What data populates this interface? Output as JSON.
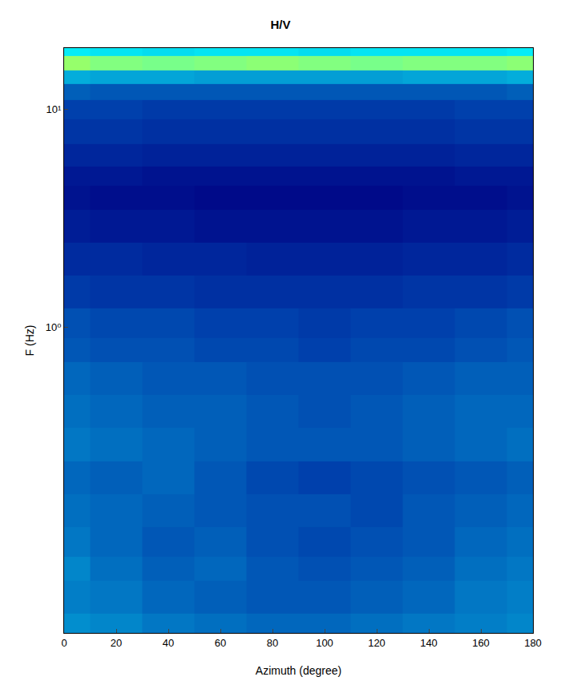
{
  "chart_data": {
    "type": "heatmap",
    "title": "H/V",
    "x_label": "Azimuth (degree)",
    "y_label": "F (Hz)",
    "log": "y",
    "grid": false,
    "color": "Jet",
    "xlim": [
      0,
      180
    ],
    "xticks": [
      0,
      20,
      40,
      60,
      80,
      100,
      120,
      140,
      160,
      180
    ],
    "ylim": [
      0.04,
      19
    ],
    "yticks": [
      {
        "value": 1,
        "label": "10⁰"
      },
      {
        "value": 10,
        "label": "10¹"
      }
    ],
    "zlim": [
      0,
      10
    ],
    "x": [
      0,
      20,
      40,
      60,
      80,
      100,
      120,
      140,
      160,
      180
    ],
    "y": [
      0.04,
      0.06,
      0.08,
      0.1,
      0.15,
      0.2,
      0.3,
      0.4,
      0.6,
      0.8,
      1,
      1.5,
      2,
      3,
      4,
      5,
      6,
      8,
      10,
      12,
      14,
      16,
      19
    ],
    "z": [
      [
        2.3,
        2.2,
        2.0,
        1.9,
        1.8,
        1.8,
        1.9,
        2.0,
        2.1,
        2.2
      ],
      [
        2.1,
        2.0,
        1.8,
        1.7,
        1.6,
        1.6,
        1.7,
        1.8,
        2.0,
        2.1
      ],
      [
        2.2,
        1.9,
        1.7,
        1.8,
        1.6,
        1.5,
        1.6,
        1.7,
        1.9,
        2.0
      ],
      [
        2.0,
        1.8,
        1.6,
        1.7,
        1.5,
        1.4,
        1.5,
        1.6,
        1.8,
        1.9
      ],
      [
        1.9,
        1.8,
        1.7,
        1.6,
        1.5,
        1.5,
        1.4,
        1.6,
        1.7,
        1.8
      ],
      [
        1.8,
        1.7,
        1.8,
        1.6,
        1.4,
        1.3,
        1.4,
        1.5,
        1.6,
        1.7
      ],
      [
        2.0,
        1.9,
        1.8,
        1.7,
        1.6,
        1.6,
        1.6,
        1.7,
        1.8,
        1.9
      ],
      [
        1.9,
        1.8,
        1.7,
        1.7,
        1.6,
        1.5,
        1.6,
        1.7,
        1.8,
        1.8
      ],
      [
        1.8,
        1.7,
        1.6,
        1.6,
        1.5,
        1.5,
        1.5,
        1.6,
        1.7,
        1.7
      ],
      [
        1.6,
        1.5,
        1.5,
        1.4,
        1.4,
        1.3,
        1.4,
        1.4,
        1.5,
        1.6
      ],
      [
        1.5,
        1.4,
        1.4,
        1.3,
        1.3,
        1.2,
        1.3,
        1.3,
        1.4,
        1.5
      ],
      [
        1.2,
        1.1,
        1.1,
        1.0,
        1.0,
        1.0,
        1.0,
        1.1,
        1.1,
        1.2
      ],
      [
        0.9,
        0.9,
        0.8,
        0.8,
        0.7,
        0.7,
        0.7,
        0.8,
        0.8,
        0.9
      ],
      [
        0.6,
        0.5,
        0.5,
        0.4,
        0.4,
        0.4,
        0.4,
        0.5,
        0.5,
        0.6
      ],
      [
        0.4,
        0.3,
        0.3,
        0.2,
        0.2,
        0.2,
        0.2,
        0.3,
        0.3,
        0.4
      ],
      [
        0.5,
        0.5,
        0.4,
        0.4,
        0.4,
        0.4,
        0.4,
        0.4,
        0.5,
        0.5
      ],
      [
        0.8,
        0.8,
        0.7,
        0.7,
        0.7,
        0.7,
        0.7,
        0.7,
        0.8,
        0.8
      ],
      [
        1.1,
        1.1,
        1.0,
        1.0,
        1.0,
        1.0,
        1.0,
        1.0,
        1.1,
        1.1
      ],
      [
        1.3,
        1.3,
        1.2,
        1.2,
        1.2,
        1.2,
        1.2,
        1.2,
        1.3,
        1.3
      ],
      [
        1.7,
        1.6,
        1.6,
        1.6,
        1.6,
        1.6,
        1.6,
        1.6,
        1.6,
        1.7
      ],
      [
        2.7,
        2.6,
        2.6,
        2.5,
        2.5,
        2.5,
        2.5,
        2.6,
        2.6,
        2.7
      ],
      [
        5.2,
        5.0,
        4.9,
        5.0,
        5.1,
        5.0,
        4.9,
        5.0,
        5.0,
        5.1
      ],
      [
        3.5,
        3.4,
        3.3,
        3.4,
        3.4,
        3.3,
        3.4,
        3.4,
        3.4,
        3.5
      ]
    ]
  }
}
